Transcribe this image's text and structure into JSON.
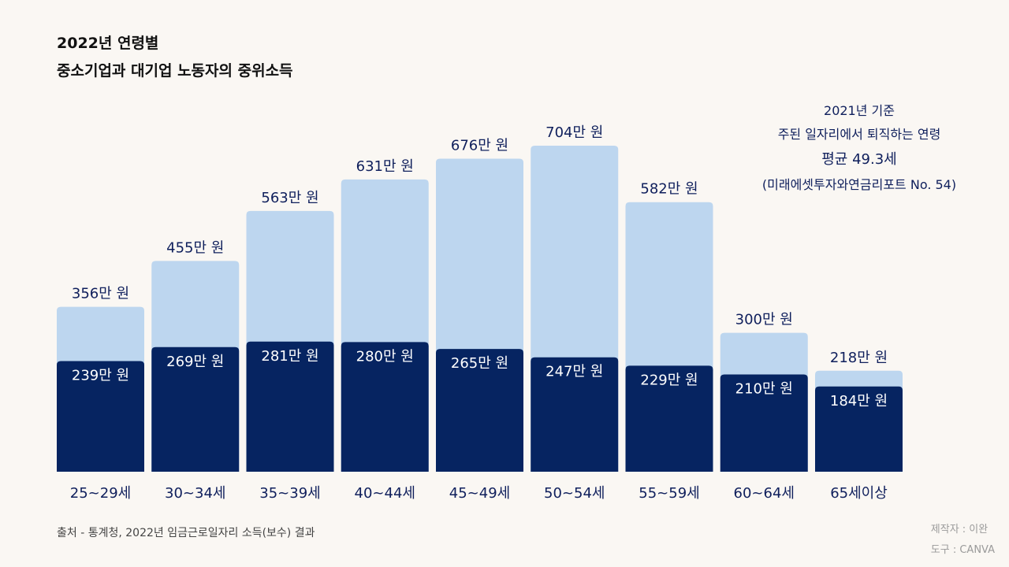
{
  "title": {
    "line1": "2022년 연령별",
    "line2": "중소기업과 대기업 노동자의 중위소득"
  },
  "note": {
    "line1": "2021년 기준",
    "line2": "주된 일자리에서 퇴직하는 연령",
    "line3": "평균 49.3세",
    "line4": "(미래에셋투자와연금리포트 No. 54)"
  },
  "source": "출처 - 통계청, 2022년 임금근로일자리 소득(보수) 결과",
  "credit": {
    "maker": "제작자 : 이완",
    "tool": "도구 : CANVA"
  },
  "colors": {
    "large": "#bdd6ef",
    "small": "#062461",
    "label_dark": "#0f1f5c",
    "label_light": "#ffffff"
  },
  "chart_data": {
    "type": "bar",
    "title": "2022년 연령별 중소기업과 대기업 노동자의 중위소득",
    "unit": "만 원",
    "label_suffix": "만 원",
    "categories": [
      "25~29세",
      "30~34세",
      "35~39세",
      "40~44세",
      "45~49세",
      "50~54세",
      "55~59세",
      "60~64세",
      "65세이상"
    ],
    "series": [
      {
        "name": "대기업",
        "values": [
          356,
          455,
          563,
          631,
          676,
          704,
          582,
          300,
          218
        ]
      },
      {
        "name": "중소기업",
        "values": [
          239,
          269,
          281,
          280,
          265,
          247,
          229,
          210,
          184
        ]
      }
    ],
    "ylim": [
      0,
      704
    ],
    "grid": false,
    "legend": "none"
  }
}
